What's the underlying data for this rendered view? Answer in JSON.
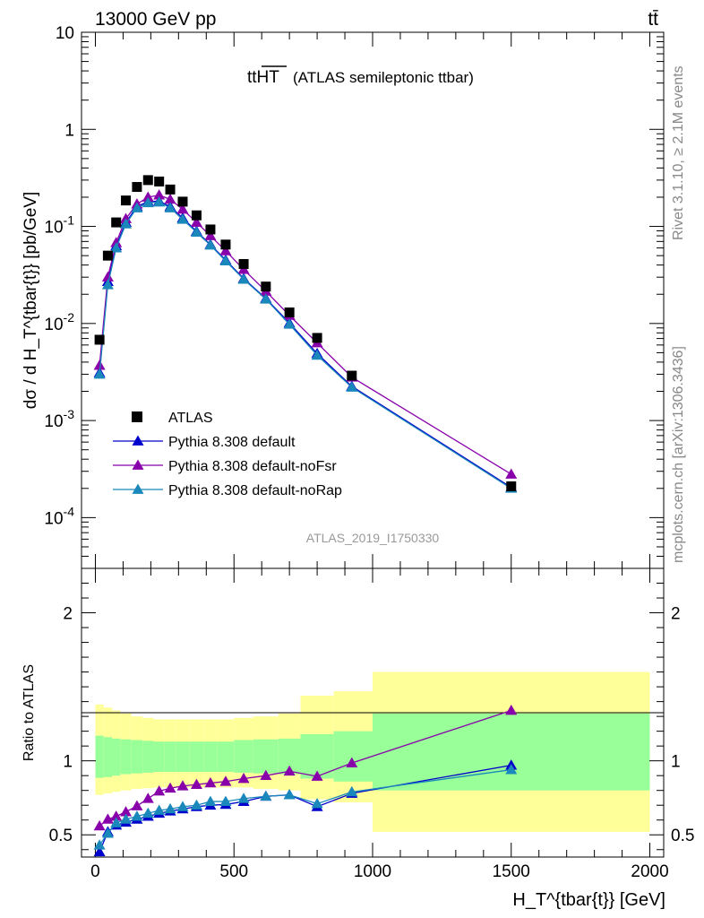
{
  "header": {
    "energy_label": "13000 GeV pp",
    "process_label": "tt̄",
    "plot_title_main": "ttHT",
    "plot_title_sub": "(ATLAS semileptonic ttbar)",
    "analysis_id": "ATLAS_2019_I1750330",
    "side_label_top": "Rivet 3.1.10, ≥ 2.1M events",
    "side_label_bottom": "mcplots.cern.ch [arXiv:1306.3436]"
  },
  "chart_data": [
    {
      "type": "scatter",
      "title": "ttHT (ATLAS semileptonic ttbar)",
      "ylabel": "dσ / d H_T^{tbar{t}} [pb/GeV]",
      "yscale": "log",
      "ylim": [
        3e-05,
        10
      ],
      "xlim": [
        -50,
        2050
      ],
      "y_tick_labels": [
        "10^-4",
        "10^-3",
        "10^-2",
        "10^-1",
        "1",
        "10"
      ],
      "x": [
        15,
        45,
        75,
        110,
        150,
        190,
        230,
        270,
        315,
        365,
        415,
        470,
        535,
        615,
        700,
        800,
        925,
        1500
      ],
      "series": [
        {
          "name": "ATLAS",
          "color": "#000000",
          "marker": "square",
          "values": [
            0.0068,
            0.05,
            0.11,
            0.185,
            0.255,
            0.3,
            0.29,
            0.24,
            0.18,
            0.13,
            0.093,
            0.065,
            0.041,
            0.024,
            0.013,
            0.0071,
            0.0029,
            0.00021
          ]
        },
        {
          "name": "Pythia 8.308 default",
          "color": "#0000cc",
          "marker": "triangle",
          "values": [
            0.0031,
            0.027,
            0.063,
            0.11,
            0.16,
            0.18,
            0.182,
            0.16,
            0.122,
            0.089,
            0.065,
            0.045,
            0.029,
            0.0181,
            0.0101,
            0.0049,
            0.00225,
            0.000205
          ]
        },
        {
          "name": "Pythia 8.308 default-noFsr",
          "color": "#8800aa",
          "marker": "triangle",
          "values": [
            0.0037,
            0.03,
            0.068,
            0.12,
            0.17,
            0.2,
            0.21,
            0.19,
            0.15,
            0.11,
            0.08,
            0.056,
            0.036,
            0.0215,
            0.0121,
            0.0063,
            0.0028,
            0.00028
          ]
        },
        {
          "name": "Pythia 8.308 default-noRap",
          "color": "#1a88bb",
          "marker": "triangle",
          "values": [
            0.003,
            0.025,
            0.06,
            0.106,
            0.155,
            0.175,
            0.178,
            0.155,
            0.118,
            0.087,
            0.064,
            0.044,
            0.0285,
            0.0178,
            0.0098,
            0.0047,
            0.0022,
            0.0002
          ]
        }
      ]
    },
    {
      "type": "line",
      "ylabel": "Ratio to ATLAS",
      "xlabel": "H_T^{tbar{t}} [GeV]",
      "ylim": [
        0.35,
        2.3
      ],
      "xlim": [
        -50,
        2050
      ],
      "x_tick_labels": [
        "0",
        "500",
        "1000",
        "1500",
        "2000"
      ],
      "y_tick_labels": [
        "0.5",
        "1",
        "2"
      ],
      "x": [
        15,
        45,
        75,
        110,
        150,
        190,
        230,
        270,
        315,
        365,
        415,
        470,
        535,
        615,
        700,
        800,
        925,
        1500
      ],
      "bins": [
        0,
        30,
        60,
        90,
        130,
        170,
        210,
        250,
        290,
        340,
        390,
        440,
        500,
        570,
        660,
        740,
        860,
        1000,
        2000
      ],
      "band_inner": [
        [
          0.885,
          1.17
        ],
        [
          0.89,
          1.16
        ],
        [
          0.9,
          1.15
        ],
        [
          0.91,
          1.145
        ],
        [
          0.915,
          1.14
        ],
        [
          0.92,
          1.135
        ],
        [
          0.925,
          1.13
        ],
        [
          0.925,
          1.13
        ],
        [
          0.925,
          1.13
        ],
        [
          0.925,
          1.13
        ],
        [
          0.925,
          1.13
        ],
        [
          0.925,
          1.13
        ],
        [
          0.92,
          1.14
        ],
        [
          0.915,
          1.145
        ],
        [
          0.91,
          1.15
        ],
        [
          0.88,
          1.18
        ],
        [
          0.86,
          1.2
        ],
        [
          0.8,
          1.32
        ]
      ],
      "band_outer": [
        [
          0.77,
          1.38
        ],
        [
          0.78,
          1.36
        ],
        [
          0.79,
          1.34
        ],
        [
          0.8,
          1.32
        ],
        [
          0.81,
          1.3
        ],
        [
          0.815,
          1.29
        ],
        [
          0.82,
          1.28
        ],
        [
          0.82,
          1.28
        ],
        [
          0.82,
          1.28
        ],
        [
          0.82,
          1.28
        ],
        [
          0.82,
          1.28
        ],
        [
          0.82,
          1.28
        ],
        [
          0.82,
          1.29
        ],
        [
          0.81,
          1.3
        ],
        [
          0.8,
          1.32
        ],
        [
          0.74,
          1.44
        ],
        [
          0.72,
          1.47
        ],
        [
          0.52,
          1.6
        ]
      ],
      "series": [
        {
          "name": "Pythia 8.308 default",
          "color": "#0000cc",
          "values": [
            0.385,
            0.52,
            0.565,
            0.585,
            0.605,
            0.625,
            0.645,
            0.66,
            0.675,
            0.69,
            0.7,
            0.705,
            0.725,
            0.76,
            0.77,
            0.69,
            0.78,
            0.97
          ]
        },
        {
          "name": "Pythia 8.308 default-noFsr",
          "color": "#8800aa",
          "values": [
            0.56,
            0.605,
            0.625,
            0.655,
            0.695,
            0.745,
            0.795,
            0.815,
            0.83,
            0.84,
            0.85,
            0.86,
            0.88,
            0.9,
            0.93,
            0.895,
            0.985,
            1.34
          ]
        },
        {
          "name": "Pythia 8.308 default-noRap",
          "color": "#1a88bb",
          "values": [
            0.43,
            0.51,
            0.58,
            0.605,
            0.625,
            0.645,
            0.665,
            0.675,
            0.69,
            0.7,
            0.725,
            0.725,
            0.745,
            0.76,
            0.77,
            0.71,
            0.79,
            0.94
          ]
        }
      ]
    }
  ]
}
